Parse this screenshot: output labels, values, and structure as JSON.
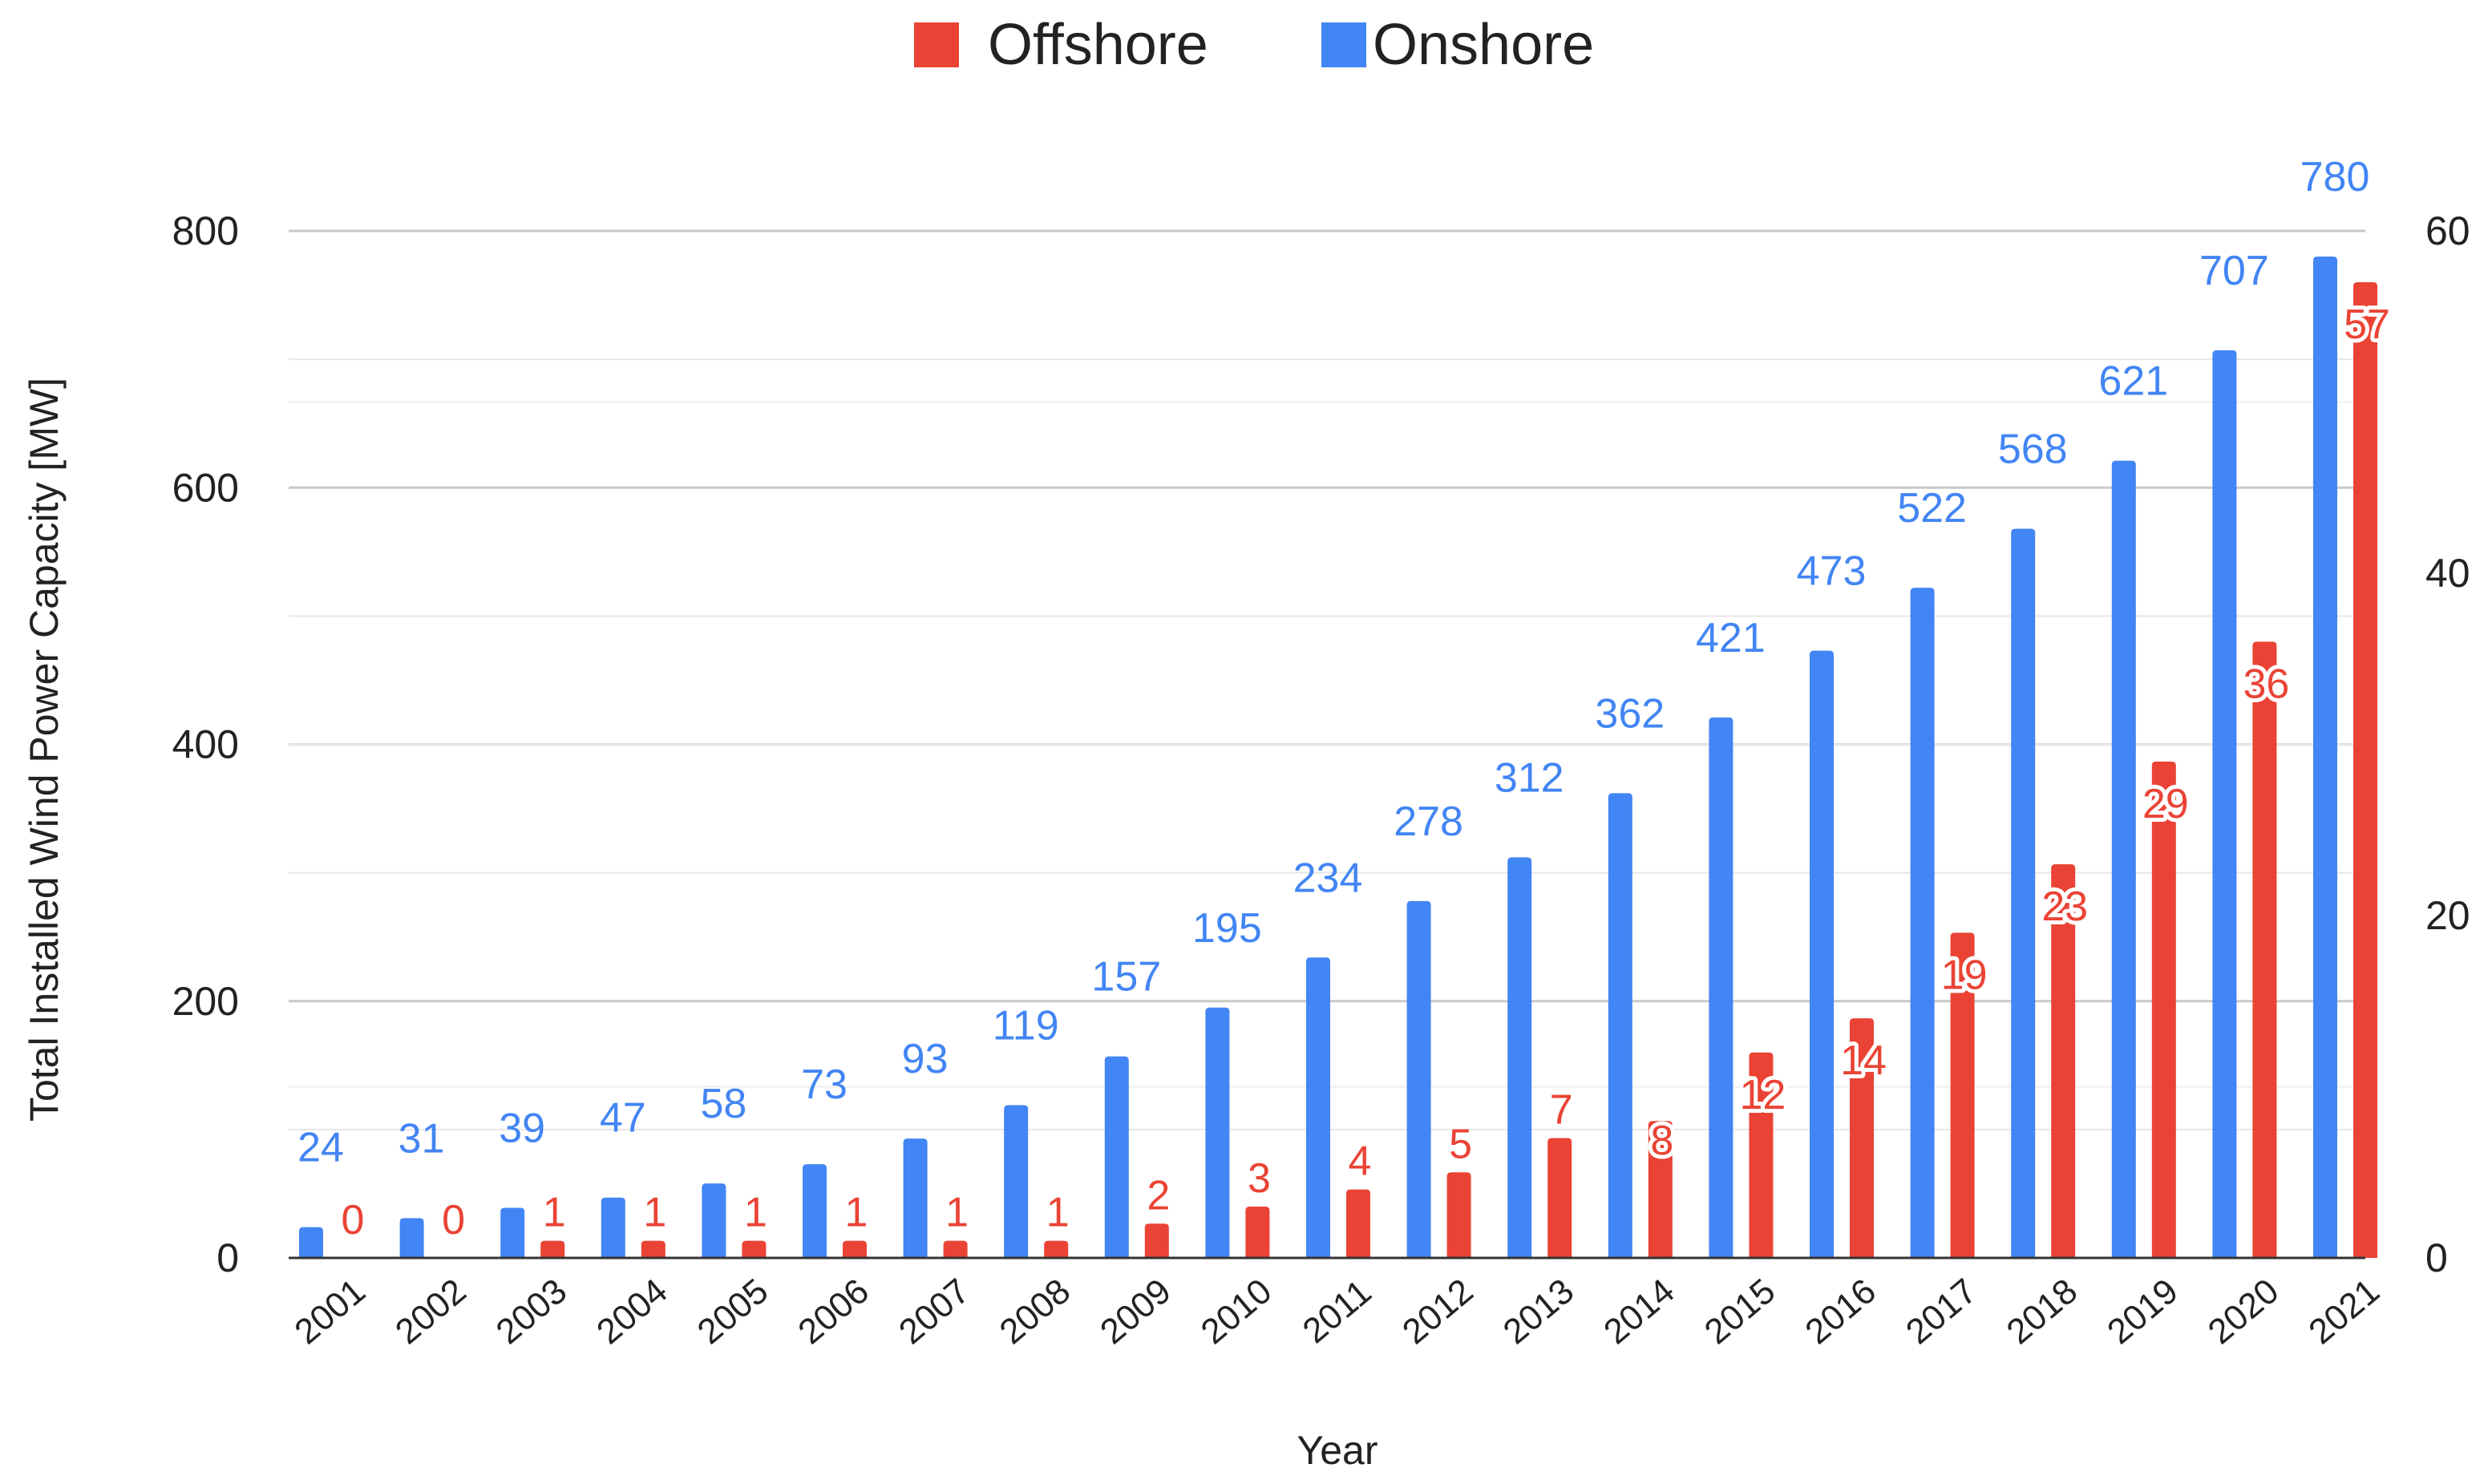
{
  "chart_data": {
    "type": "bar",
    "title": "",
    "xlabel": "Year",
    "ylabel": "Total Installed Wind Power Capacity [MW]",
    "categories": [
      "2001",
      "2002",
      "2003",
      "2004",
      "2005",
      "2006",
      "2007",
      "2008",
      "2009",
      "2010",
      "2011",
      "2012",
      "2013",
      "2014",
      "2015",
      "2016",
      "2017",
      "2018",
      "2019",
      "2020",
      "2021"
    ],
    "series": [
      {
        "name": "Onshore",
        "axis": "left",
        "color": "#4285f4",
        "values": [
          24,
          31,
          39,
          47,
          58,
          73,
          93,
          119,
          157,
          195,
          234,
          278,
          312,
          362,
          421,
          473,
          522,
          568,
          621,
          707,
          780
        ]
      },
      {
        "name": "Offshore",
        "axis": "right",
        "color": "#ea4335",
        "values": [
          0,
          0,
          1,
          1,
          1,
          1,
          1,
          1,
          2,
          3,
          4,
          5,
          7,
          8,
          12,
          14,
          19,
          23,
          29,
          36,
          57
        ]
      }
    ],
    "legend": {
      "position": "top-center",
      "order": [
        "Offshore",
        "Onshore"
      ]
    },
    "y_left": {
      "ylim": [
        0,
        800
      ],
      "ticks": [
        "0",
        "200",
        "400",
        "600",
        "800"
      ]
    },
    "y_right": {
      "ylim": [
        0,
        60
      ],
      "ticks": [
        "0",
        "20",
        "40",
        "60"
      ]
    },
    "grid": true
  }
}
